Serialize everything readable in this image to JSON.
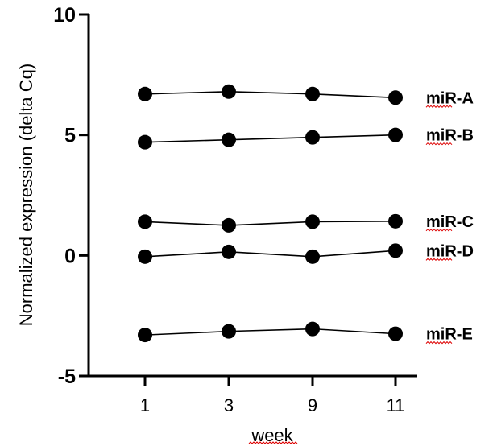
{
  "chart_data": {
    "type": "line",
    "title": "",
    "xlabel": "week",
    "ylabel": "Normalized expression (delta Cq)",
    "categories": [
      "1",
      "3",
      "9",
      "11"
    ],
    "ylim": [
      -5,
      10
    ],
    "yticks": [
      -5,
      0,
      5,
      10
    ],
    "grid": false,
    "legend": "labels at right end of each series",
    "series": [
      {
        "name": "miR-A",
        "values": [
          6.7,
          6.8,
          6.7,
          6.55
        ]
      },
      {
        "name": "miR-B",
        "values": [
          4.7,
          4.8,
          4.9,
          5.0
        ]
      },
      {
        "name": "miR-C",
        "values": [
          1.4,
          1.25,
          1.4,
          1.42
        ]
      },
      {
        "name": "miR-D",
        "values": [
          -0.05,
          0.15,
          -0.05,
          0.2
        ]
      },
      {
        "name": "miR-E",
        "values": [
          -3.3,
          -3.15,
          -3.05,
          -3.25
        ]
      }
    ],
    "colors": {
      "line": "#000000",
      "marker": "#000000",
      "spellcheck_underline": "#dd0000"
    }
  }
}
